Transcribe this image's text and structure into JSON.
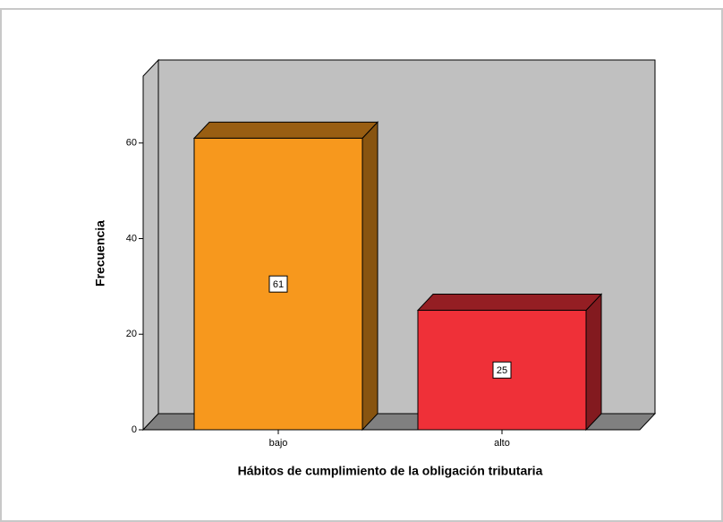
{
  "chart_data": {
    "type": "bar3d",
    "xlabel": "Hábitos de cumplimiento de la obligación tributaria",
    "ylabel": "Frecuencia",
    "categories": [
      "bajo",
      "alto"
    ],
    "values": [
      61,
      25
    ],
    "colors": [
      "#f7981d",
      "#ef3038"
    ],
    "ylim": [
      0,
      74
    ],
    "yticks": [
      0,
      20,
      40,
      60
    ]
  }
}
